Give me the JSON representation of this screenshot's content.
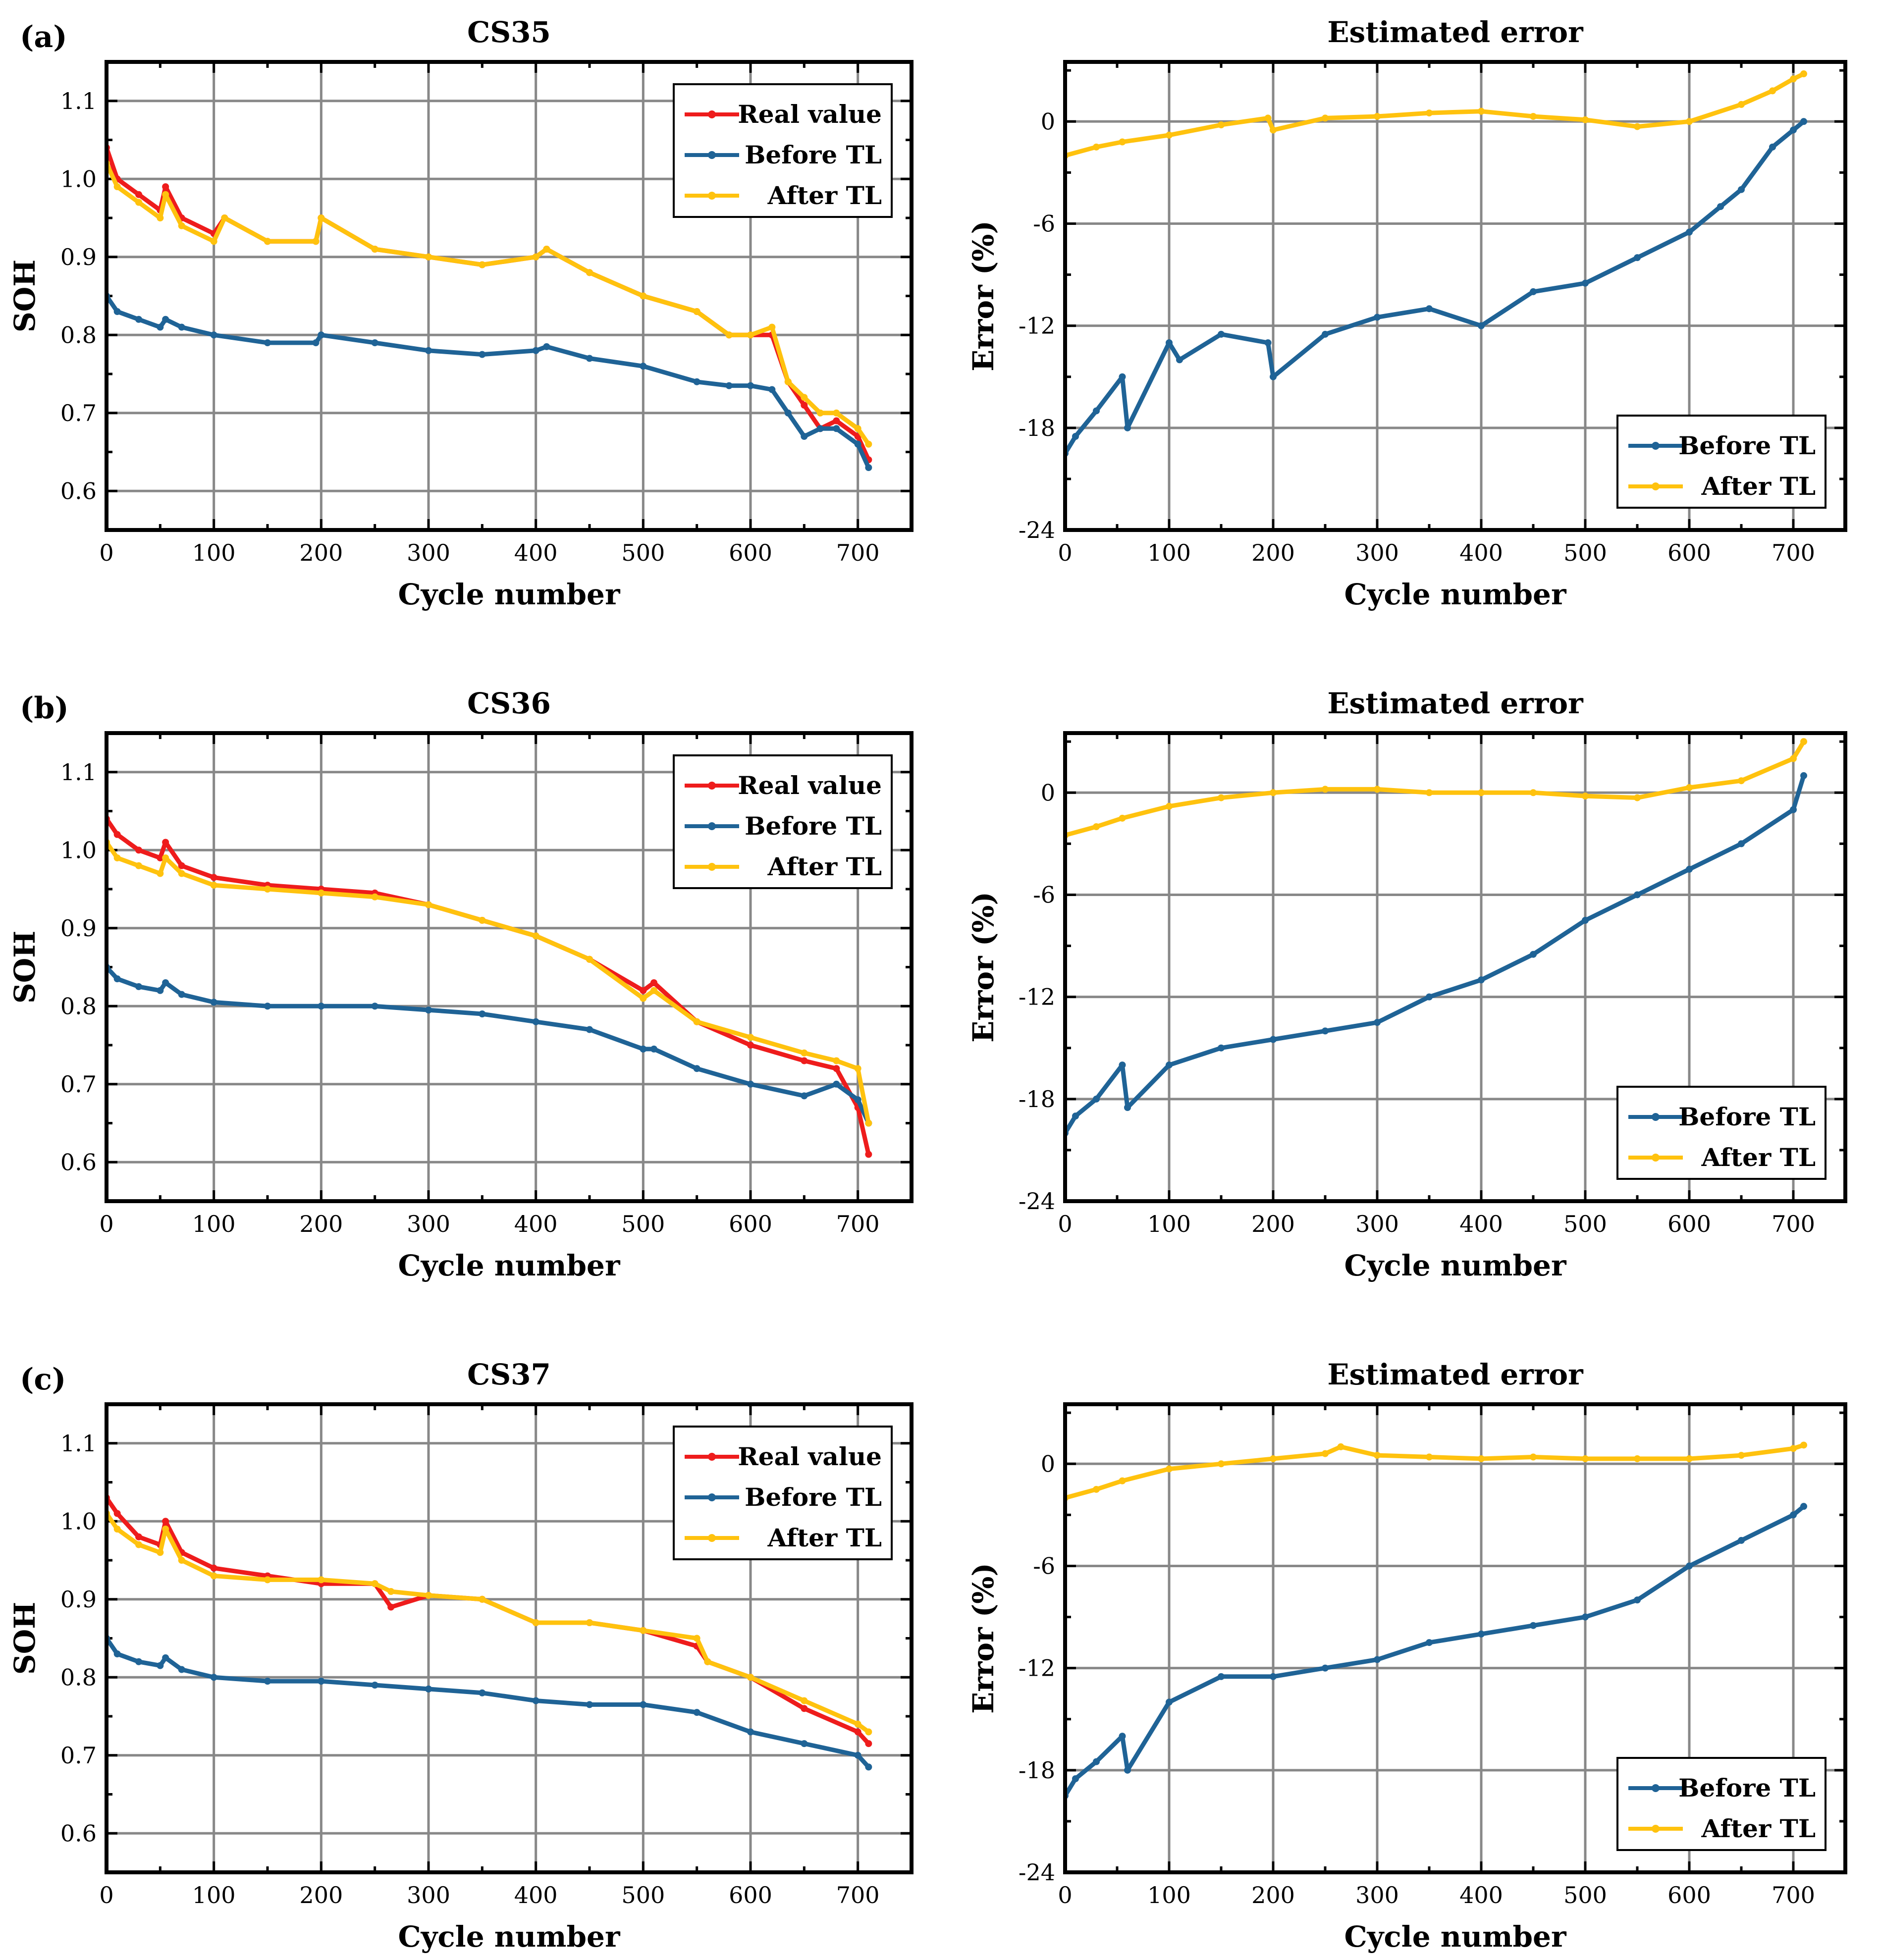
{
  "colors": {
    "real_value": "#ee1c1c",
    "before_tl": "#1f6396",
    "after_tl": "#ffc20e",
    "grid": "#888888",
    "frame": "#000000"
  },
  "panels": [
    {
      "label": "(a)"
    },
    {
      "label": "(b)"
    },
    {
      "label": "(c)"
    }
  ],
  "chart_data": [
    {
      "type": "line",
      "panel": "(a)",
      "title": "CS35",
      "xlabel": "Cycle number",
      "ylabel": "SOH",
      "xlim": [
        0,
        750
      ],
      "ylim": [
        0.55,
        1.15
      ],
      "xticks": [
        0,
        100,
        200,
        300,
        400,
        500,
        600,
        700
      ],
      "yticks": [
        0.6,
        0.7,
        0.8,
        0.9,
        1.0,
        1.1
      ],
      "ytick_labels": [
        "0.6",
        "0.7",
        "0.8",
        "0.9",
        "1.0",
        "1.1"
      ],
      "grid": true,
      "legend_position": "top-right",
      "series": [
        {
          "name": "Real value",
          "color_key": "real_value",
          "x": [
            0,
            10,
            30,
            50,
            55,
            70,
            100,
            110,
            150,
            195,
            200,
            250,
            300,
            350,
            400,
            410,
            450,
            500,
            550,
            580,
            600,
            620,
            635,
            650,
            665,
            680,
            700,
            710
          ],
          "values": [
            1.04,
            1.0,
            0.98,
            0.96,
            0.99,
            0.95,
            0.93,
            0.95,
            0.92,
            0.92,
            0.95,
            0.91,
            0.9,
            0.89,
            0.9,
            0.91,
            0.88,
            0.85,
            0.83,
            0.8,
            0.8,
            0.8,
            0.74,
            0.71,
            0.68,
            0.69,
            0.67,
            0.64
          ]
        },
        {
          "name": "Before TL",
          "color_key": "before_tl",
          "x": [
            0,
            10,
            30,
            50,
            55,
            70,
            100,
            150,
            195,
            200,
            250,
            300,
            350,
            400,
            410,
            450,
            500,
            550,
            580,
            600,
            620,
            635,
            650,
            665,
            680,
            700,
            710
          ],
          "values": [
            0.85,
            0.83,
            0.82,
            0.81,
            0.82,
            0.81,
            0.8,
            0.79,
            0.79,
            0.8,
            0.79,
            0.78,
            0.775,
            0.78,
            0.785,
            0.77,
            0.76,
            0.74,
            0.735,
            0.735,
            0.73,
            0.7,
            0.67,
            0.68,
            0.68,
            0.66,
            0.63
          ]
        },
        {
          "name": "After TL",
          "color_key": "after_tl",
          "x": [
            0,
            10,
            30,
            50,
            55,
            70,
            100,
            110,
            150,
            195,
            200,
            250,
            300,
            350,
            400,
            410,
            450,
            500,
            550,
            580,
            600,
            620,
            635,
            650,
            665,
            680,
            700,
            710
          ],
          "values": [
            1.02,
            0.99,
            0.97,
            0.95,
            0.98,
            0.94,
            0.92,
            0.95,
            0.92,
            0.92,
            0.95,
            0.91,
            0.9,
            0.89,
            0.9,
            0.91,
            0.88,
            0.85,
            0.83,
            0.8,
            0.8,
            0.81,
            0.74,
            0.72,
            0.7,
            0.7,
            0.68,
            0.66
          ]
        }
      ]
    },
    {
      "type": "line",
      "panel": "(a)",
      "title": "Estimated error",
      "xlabel": "Cycle number",
      "ylabel": "Error (%)",
      "xlim": [
        0,
        750
      ],
      "ylim": [
        -24,
        3.5
      ],
      "xticks": [
        0,
        100,
        200,
        300,
        400,
        500,
        600,
        700
      ],
      "yticks": [
        -24,
        -18,
        -12,
        -6,
        0
      ],
      "ytick_labels": [
        "-24",
        "-18",
        "-12",
        "-6",
        "0"
      ],
      "grid": true,
      "legend_position": "bottom-right",
      "series": [
        {
          "name": "Before TL",
          "color_key": "before_tl",
          "x": [
            0,
            10,
            30,
            55,
            60,
            100,
            110,
            150,
            195,
            200,
            250,
            300,
            350,
            400,
            450,
            500,
            550,
            600,
            630,
            650,
            680,
            700,
            710
          ],
          "values": [
            -19.5,
            -18.5,
            -17,
            -15,
            -18,
            -13,
            -14,
            -12.5,
            -13,
            -15,
            -12.5,
            -11.5,
            -11,
            -12,
            -10,
            -9.5,
            -8,
            -6.5,
            -5,
            -4,
            -1.5,
            -0.5,
            0
          ]
        },
        {
          "name": "After TL",
          "color_key": "after_tl",
          "x": [
            0,
            30,
            55,
            100,
            150,
            195,
            200,
            250,
            300,
            350,
            400,
            450,
            500,
            550,
            600,
            650,
            680,
            700,
            710
          ],
          "values": [
            -2,
            -1.5,
            -1.2,
            -0.8,
            -0.2,
            0.2,
            -0.5,
            0.2,
            0.3,
            0.5,
            0.6,
            0.3,
            0.1,
            -0.3,
            0,
            1,
            1.8,
            2.5,
            2.8
          ]
        }
      ]
    },
    {
      "type": "line",
      "panel": "(b)",
      "title": "CS36",
      "xlabel": "Cycle number",
      "ylabel": "SOH",
      "xlim": [
        0,
        750
      ],
      "ylim": [
        0.55,
        1.15
      ],
      "xticks": [
        0,
        100,
        200,
        300,
        400,
        500,
        600,
        700
      ],
      "yticks": [
        0.6,
        0.7,
        0.8,
        0.9,
        1.0,
        1.1
      ],
      "ytick_labels": [
        "0.6",
        "0.7",
        "0.8",
        "0.9",
        "1.0",
        "1.1"
      ],
      "grid": true,
      "legend_position": "top-right",
      "series": [
        {
          "name": "Real value",
          "color_key": "real_value",
          "x": [
            0,
            10,
            30,
            50,
            55,
            70,
            100,
            150,
            200,
            250,
            300,
            350,
            400,
            450,
            500,
            510,
            550,
            600,
            650,
            680,
            700,
            710
          ],
          "values": [
            1.04,
            1.02,
            1.0,
            0.99,
            1.01,
            0.98,
            0.965,
            0.955,
            0.95,
            0.945,
            0.93,
            0.91,
            0.89,
            0.86,
            0.82,
            0.83,
            0.78,
            0.75,
            0.73,
            0.72,
            0.67,
            0.61
          ]
        },
        {
          "name": "Before TL",
          "color_key": "before_tl",
          "x": [
            0,
            10,
            30,
            50,
            55,
            70,
            100,
            150,
            200,
            250,
            300,
            350,
            400,
            450,
            500,
            510,
            550,
            600,
            650,
            680,
            700,
            710
          ],
          "values": [
            0.85,
            0.835,
            0.825,
            0.82,
            0.83,
            0.815,
            0.805,
            0.8,
            0.8,
            0.8,
            0.795,
            0.79,
            0.78,
            0.77,
            0.745,
            0.745,
            0.72,
            0.7,
            0.685,
            0.7,
            0.68,
            0.65
          ]
        },
        {
          "name": "After TL",
          "color_key": "after_tl",
          "x": [
            0,
            10,
            30,
            50,
            55,
            70,
            100,
            150,
            200,
            250,
            300,
            350,
            400,
            450,
            500,
            510,
            550,
            600,
            650,
            680,
            700,
            710
          ],
          "values": [
            1.01,
            0.99,
            0.98,
            0.97,
            0.99,
            0.97,
            0.955,
            0.95,
            0.945,
            0.94,
            0.93,
            0.91,
            0.89,
            0.86,
            0.81,
            0.82,
            0.78,
            0.76,
            0.74,
            0.73,
            0.72,
            0.65
          ]
        }
      ]
    },
    {
      "type": "line",
      "panel": "(b)",
      "title": "Estimated error",
      "xlabel": "Cycle number",
      "ylabel": "Error (%)",
      "xlim": [
        0,
        750
      ],
      "ylim": [
        -24,
        3.5
      ],
      "xticks": [
        0,
        100,
        200,
        300,
        400,
        500,
        600,
        700
      ],
      "yticks": [
        -24,
        -18,
        -12,
        -6,
        0
      ],
      "ytick_labels": [
        "-24",
        "-18",
        "-12",
        "-6",
        "0"
      ],
      "grid": true,
      "legend_position": "bottom-right",
      "series": [
        {
          "name": "Before TL",
          "color_key": "before_tl",
          "x": [
            0,
            10,
            30,
            55,
            60,
            100,
            150,
            200,
            250,
            300,
            350,
            400,
            450,
            500,
            550,
            600,
            650,
            700,
            710
          ],
          "values": [
            -20,
            -19,
            -18,
            -16,
            -18.5,
            -16,
            -15,
            -14.5,
            -14,
            -13.5,
            -12,
            -11,
            -9.5,
            -7.5,
            -6,
            -4.5,
            -3,
            -1,
            1
          ]
        },
        {
          "name": "After TL",
          "color_key": "after_tl",
          "x": [
            0,
            30,
            55,
            100,
            150,
            200,
            250,
            300,
            350,
            400,
            450,
            500,
            550,
            600,
            650,
            700,
            710
          ],
          "values": [
            -2.5,
            -2,
            -1.5,
            -0.8,
            -0.3,
            0,
            0.2,
            0.2,
            0,
            0,
            0,
            -0.2,
            -0.3,
            0.3,
            0.7,
            2,
            3
          ]
        }
      ]
    },
    {
      "type": "line",
      "panel": "(c)",
      "title": "CS37",
      "xlabel": "Cycle number",
      "ylabel": "SOH",
      "xlim": [
        0,
        750
      ],
      "ylim": [
        0.55,
        1.15
      ],
      "xticks": [
        0,
        100,
        200,
        300,
        400,
        500,
        600,
        700
      ],
      "yticks": [
        0.6,
        0.7,
        0.8,
        0.9,
        1.0,
        1.1
      ],
      "ytick_labels": [
        "0.6",
        "0.7",
        "0.8",
        "0.9",
        "1.0",
        "1.1"
      ],
      "grid": true,
      "legend_position": "top-right",
      "series": [
        {
          "name": "Real value",
          "color_key": "real_value",
          "x": [
            0,
            10,
            30,
            50,
            55,
            70,
            100,
            150,
            200,
            250,
            265,
            300,
            350,
            400,
            450,
            500,
            550,
            560,
            600,
            650,
            700,
            710
          ],
          "values": [
            1.03,
            1.01,
            0.98,
            0.97,
            1.0,
            0.96,
            0.94,
            0.93,
            0.92,
            0.92,
            0.89,
            0.905,
            0.9,
            0.87,
            0.87,
            0.86,
            0.84,
            0.82,
            0.8,
            0.76,
            0.73,
            0.715
          ]
        },
        {
          "name": "Before TL",
          "color_key": "before_tl",
          "x": [
            0,
            10,
            30,
            50,
            55,
            70,
            100,
            150,
            200,
            250,
            300,
            350,
            400,
            450,
            500,
            550,
            600,
            650,
            700,
            710
          ],
          "values": [
            0.85,
            0.83,
            0.82,
            0.815,
            0.825,
            0.81,
            0.8,
            0.795,
            0.795,
            0.79,
            0.785,
            0.78,
            0.77,
            0.765,
            0.765,
            0.755,
            0.73,
            0.715,
            0.7,
            0.685
          ]
        },
        {
          "name": "After TL",
          "color_key": "after_tl",
          "x": [
            0,
            10,
            30,
            50,
            55,
            70,
            100,
            150,
            200,
            250,
            265,
            300,
            350,
            400,
            450,
            500,
            550,
            560,
            600,
            650,
            700,
            710
          ],
          "values": [
            1.01,
            0.99,
            0.97,
            0.96,
            0.99,
            0.95,
            0.93,
            0.925,
            0.925,
            0.92,
            0.91,
            0.905,
            0.9,
            0.87,
            0.87,
            0.86,
            0.85,
            0.82,
            0.8,
            0.77,
            0.74,
            0.73
          ]
        }
      ]
    },
    {
      "type": "line",
      "panel": "(c)",
      "title": "Estimated error",
      "xlabel": "Cycle number",
      "ylabel": "Error (%)",
      "xlim": [
        0,
        750
      ],
      "ylim": [
        -24,
        3.5
      ],
      "xticks": [
        0,
        100,
        200,
        300,
        400,
        500,
        600,
        700
      ],
      "yticks": [
        -24,
        -18,
        -12,
        -6,
        0
      ],
      "ytick_labels": [
        "-24",
        "-18",
        "-12",
        "-6",
        "0"
      ],
      "grid": true,
      "legend_position": "bottom-right",
      "series": [
        {
          "name": "Before TL",
          "color_key": "before_tl",
          "x": [
            0,
            10,
            30,
            55,
            60,
            100,
            150,
            200,
            250,
            300,
            350,
            400,
            450,
            500,
            550,
            600,
            650,
            700,
            710
          ],
          "values": [
            -19.5,
            -18.5,
            -17.5,
            -16,
            -18,
            -14,
            -12.5,
            -12.5,
            -12,
            -11.5,
            -10.5,
            -10,
            -9.5,
            -9,
            -8,
            -6,
            -4.5,
            -3,
            -2.5
          ]
        },
        {
          "name": "After TL",
          "color_key": "after_tl",
          "x": [
            0,
            30,
            55,
            100,
            150,
            200,
            250,
            265,
            300,
            350,
            400,
            450,
            500,
            550,
            600,
            650,
            700,
            710
          ],
          "values": [
            -2,
            -1.5,
            -1,
            -0.3,
            0,
            0.3,
            0.6,
            1,
            0.5,
            0.4,
            0.3,
            0.4,
            0.3,
            0.3,
            0.3,
            0.5,
            0.9,
            1.1
          ]
        }
      ]
    }
  ]
}
